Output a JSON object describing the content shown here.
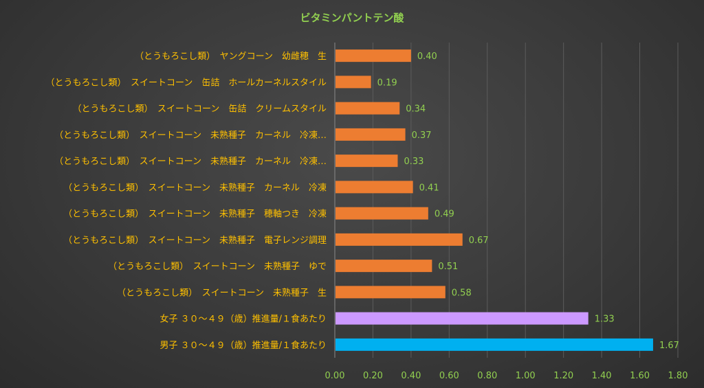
{
  "chart_data": {
    "type": "bar",
    "orientation": "horizontal",
    "title": "ビタミンパントテン酸",
    "categories": [
      "（とうもろこし類）　ヤングコーン　幼雌穂　生",
      "（とうもろこし類）　スイートコーン　缶詰　ホールカーネルスタイル",
      "（とうもろこし類）　スイートコーン　缶詰　クリームスタイル",
      "（とうもろこし類）　スイートコーン　未熟種子　カーネル　冷凍…",
      "（とうもろこし類）　スイートコーン　未熟種子　カーネル　冷凍…",
      "（とうもろこし類）　スイートコーン　未熟種子　カーネル　冷凍",
      "（とうもろこし類）　スイートコーン　未熟種子　穂軸つき　冷凍",
      "（とうもろこし類）　スイートコーン　未熟種子　電子レンジ調理",
      "（とうもろこし類）　スイートコーン　未熟種子　ゆで",
      "（とうもろこし類）　スイートコーン　未熟種子　生",
      "女子 ３０～４９（歳）推進量/１食あたり",
      "男子 ３０～４９（歳）推進量/１食あたり"
    ],
    "values": [
      0.4,
      0.19,
      0.34,
      0.37,
      0.33,
      0.41,
      0.49,
      0.67,
      0.51,
      0.58,
      1.33,
      1.67
    ],
    "value_labels": [
      "0.40",
      "0.19",
      "0.34",
      "0.37",
      "0.33",
      "0.41",
      "0.49",
      "0.67",
      "0.51",
      "0.58",
      "1.33",
      "1.67"
    ],
    "bar_colors": [
      "#ed7d31",
      "#ed7d31",
      "#ed7d31",
      "#ed7d31",
      "#ed7d31",
      "#ed7d31",
      "#ed7d31",
      "#ed7d31",
      "#ed7d31",
      "#ed7d31",
      "#cc99ff",
      "#00b0f0"
    ],
    "xlim": [
      0,
      1.8
    ],
    "xticks": [
      "0.00",
      "0.20",
      "0.40",
      "0.60",
      "0.80",
      "1.00",
      "1.20",
      "1.40",
      "1.60",
      "1.80"
    ],
    "grid": true,
    "legend": "none",
    "xlabel": "",
    "ylabel": ""
  },
  "colors": {
    "title": "#92d050",
    "category_labels": "#ffc000",
    "value_labels": "#92d050",
    "tick_labels": "#92d050",
    "gridlines": "#5c5c5c"
  }
}
